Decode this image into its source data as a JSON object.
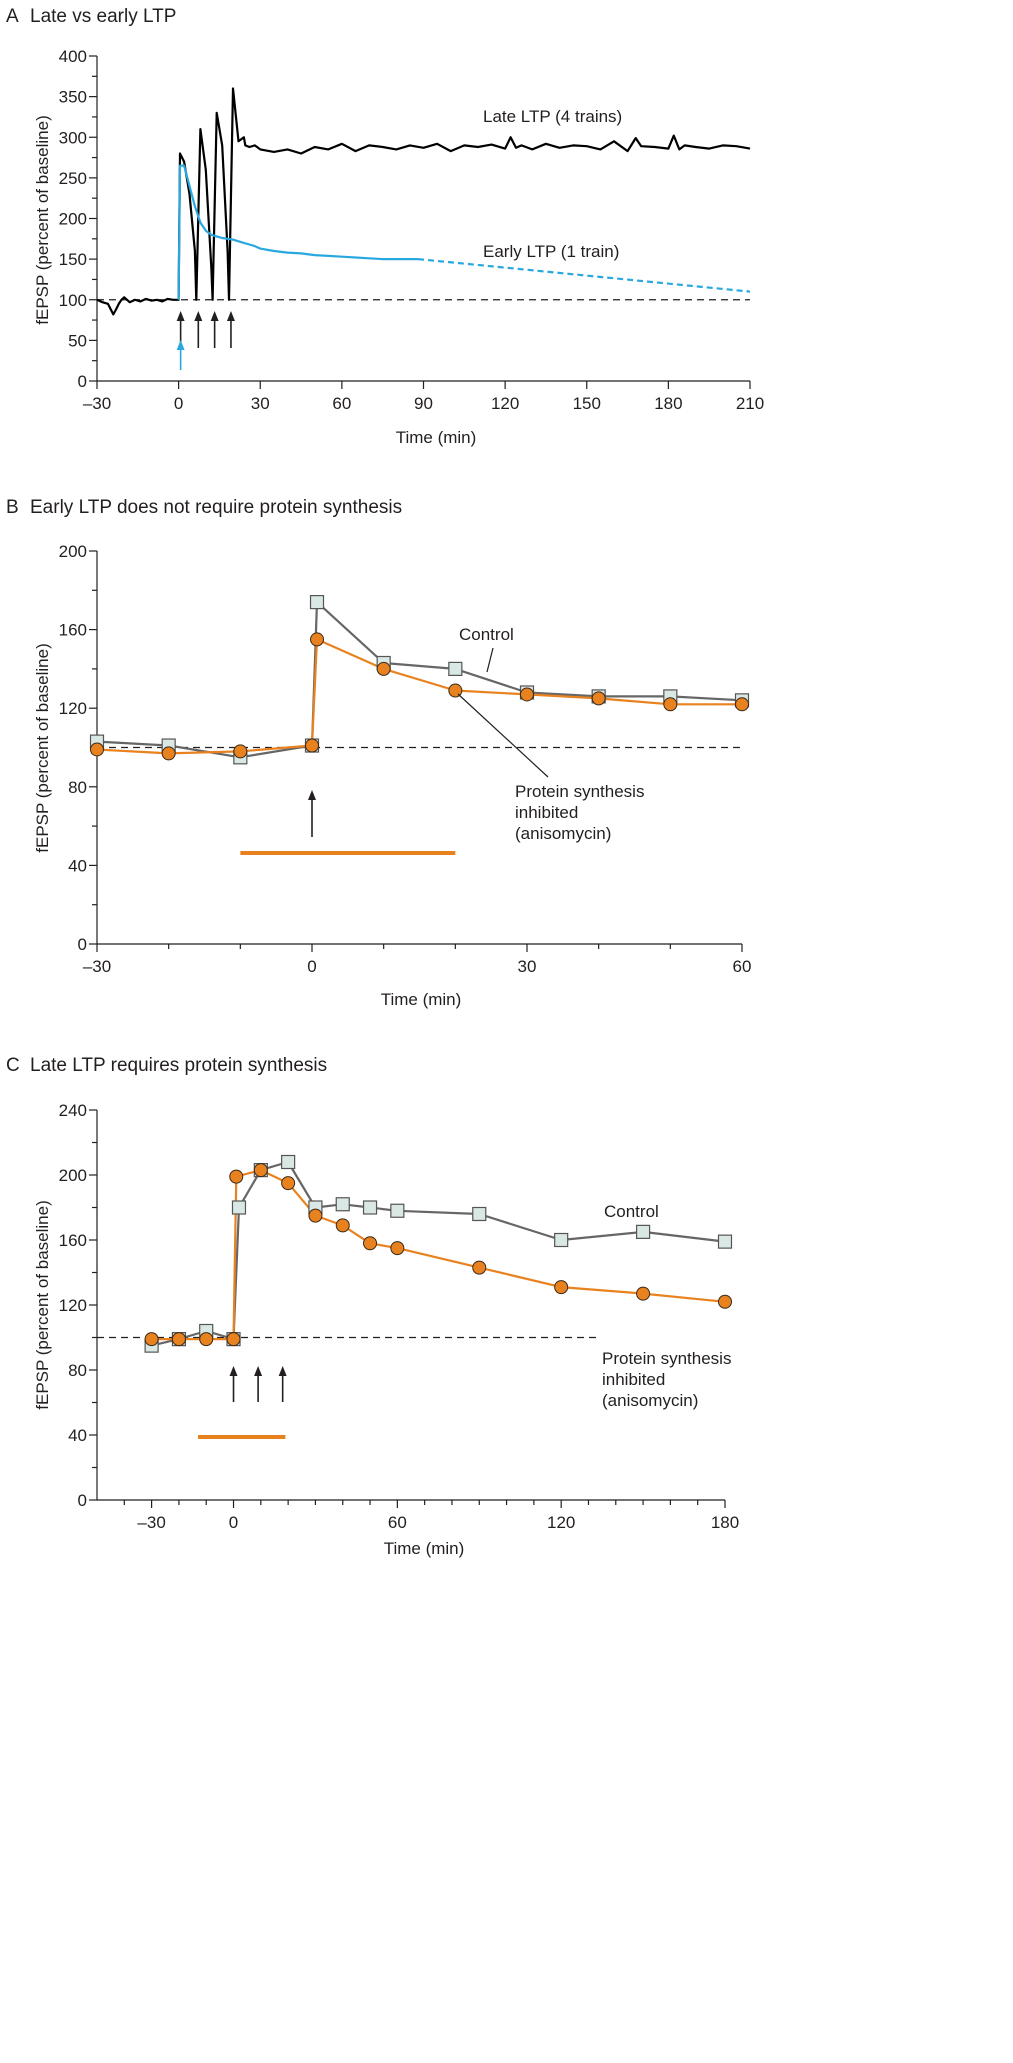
{
  "chart_data": [
    {
      "panel": "A",
      "title": "Late vs early LTP",
      "type": "line",
      "xlabel": "Time (min)",
      "ylabel": "fEPSP (percent of baseline)",
      "xlim": [
        -30,
        210
      ],
      "ylim": [
        0,
        400
      ],
      "xticks": [
        -30,
        0,
        30,
        60,
        90,
        120,
        150,
        180,
        210
      ],
      "xtick_labels": [
        "–30",
        "0",
        "30",
        "60",
        "90",
        "120",
        "150",
        "180",
        "210"
      ],
      "yticks": [
        0,
        50,
        100,
        150,
        200,
        250,
        300,
        350,
        400
      ],
      "baseline": 100,
      "series": [
        {
          "name": "Late LTP (4 trains)",
          "color": "#000000",
          "x": [
            -30,
            -28,
            -26,
            -24,
            -23,
            -22,
            -21,
            -20,
            -18,
            -16,
            -14,
            -12,
            -10,
            -8,
            -6,
            -4,
            -2,
            0,
            0.5,
            2,
            4,
            6,
            6.5,
            8,
            10,
            12,
            12.5,
            14,
            16,
            18,
            18.5,
            20,
            22,
            24,
            24.5,
            26,
            28,
            30,
            35,
            40,
            45,
            50,
            55,
            60,
            65,
            70,
            75,
            80,
            85,
            90,
            95,
            100,
            105,
            110,
            115,
            120,
            122,
            124,
            126,
            130,
            135,
            140,
            145,
            150,
            155,
            160,
            165,
            168,
            170,
            175,
            180,
            182,
            184,
            186,
            190,
            195,
            200,
            205,
            210
          ],
          "y": [
            100,
            97,
            95,
            82,
            88,
            95,
            100,
            103,
            97,
            100,
            98,
            101,
            99,
            100,
            98,
            101,
            100,
            100,
            280,
            270,
            230,
            160,
            100,
            310,
            260,
            140,
            100,
            330,
            290,
            160,
            100,
            360,
            295,
            300,
            290,
            288,
            290,
            285,
            282,
            285,
            280,
            288,
            285,
            292,
            283,
            290,
            288,
            285,
            290,
            287,
            292,
            283,
            290,
            288,
            291,
            286,
            300,
            287,
            290,
            285,
            292,
            287,
            290,
            289,
            285,
            295,
            283,
            299,
            289,
            288,
            286,
            302,
            285,
            290,
            288,
            286,
            290,
            289,
            286
          ]
        },
        {
          "name": "Early LTP (1 train)",
          "color": "#29a8e0",
          "x": [
            0,
            0.5,
            2,
            4,
            6,
            8,
            10,
            12,
            14,
            16,
            18,
            20,
            22,
            24,
            26,
            28,
            30,
            35,
            40,
            45,
            50,
            55,
            60,
            65,
            70,
            75,
            80,
            85,
            88
          ],
          "y": [
            100,
            265,
            265,
            240,
            215,
            195,
            185,
            180,
            178,
            176,
            175,
            174,
            172,
            170,
            168,
            166,
            163,
            160,
            158,
            157,
            155,
            154,
            153,
            152,
            151,
            150,
            150,
            150,
            150
          ]
        },
        {
          "name": "Early LTP (1 train) extrapolated",
          "color": "#29a8e0",
          "dashed": true,
          "x": [
            88,
            210
          ],
          "y": [
            150,
            110
          ]
        }
      ],
      "stimulus_arrows": {
        "black": [
          0,
          6.5,
          12.5,
          18.5
        ],
        "blue": [
          0
        ]
      }
    },
    {
      "panel": "B",
      "title": "Early LTP does not require protein synthesis",
      "type": "line",
      "xlabel": "Time (min)",
      "ylabel": "fEPSP (percent of baseline)",
      "xlim": [
        -30,
        60
      ],
      "ylim": [
        0,
        200
      ],
      "xticks": [
        -30,
        0,
        30,
        60
      ],
      "xtick_labels": [
        "–30",
        "0",
        "30",
        "60"
      ],
      "yticks": [
        0,
        40,
        80,
        120,
        160,
        200
      ],
      "baseline": 100,
      "series": [
        {
          "name": "Control",
          "color": "#666666",
          "marker": "square",
          "x": [
            -30,
            -20,
            -10,
            0,
            0.7,
            10,
            20,
            30,
            40,
            50,
            60
          ],
          "y": [
            103,
            101,
            95,
            101,
            174,
            143,
            140,
            128,
            126,
            126,
            124
          ]
        },
        {
          "name": "Protein synthesis inhibited (anisomycin)",
          "color": "#e8821e",
          "marker": "circle",
          "x": [
            -30,
            -20,
            -10,
            0,
            0.7,
            10,
            20,
            30,
            40,
            50,
            60
          ],
          "y": [
            99,
            97,
            98,
            101,
            155,
            140,
            129,
            127,
            125,
            122,
            122
          ]
        }
      ],
      "drug_bar": [
        -10,
        20
      ],
      "stimulus_arrows": [
        0
      ]
    },
    {
      "panel": "C",
      "title": "Late LTP requires protein synthesis",
      "type": "line",
      "xlabel": "Time (min)",
      "ylabel": "fEPSP (percent of baseline)",
      "xlim": [
        -50,
        180
      ],
      "ylim": [
        0,
        240
      ],
      "xticks": [
        -30,
        0,
        60,
        120,
        180
      ],
      "xtick_labels": [
        "–30",
        "0",
        "60",
        "120",
        "180"
      ],
      "yticks": [
        0,
        40,
        80,
        120,
        160,
        200,
        240
      ],
      "baseline": 100,
      "series": [
        {
          "name": "Control",
          "color": "#666666",
          "marker": "square",
          "x": [
            -30,
            -20,
            -10,
            0,
            2,
            10,
            20,
            30,
            40,
            50,
            60,
            90,
            120,
            150,
            180
          ],
          "y": [
            95,
            99,
            104,
            99,
            180,
            203,
            208,
            180,
            182,
            180,
            178,
            176,
            160,
            165,
            159
          ]
        },
        {
          "name": "Protein synthesis inhibited (anisomycin)",
          "color": "#e8821e",
          "marker": "circle",
          "x": [
            -30,
            -20,
            -10,
            0,
            1,
            10,
            20,
            30,
            40,
            50,
            60,
            90,
            120,
            150,
            180
          ],
          "y": [
            99,
            99,
            99,
            99,
            199,
            203,
            195,
            175,
            169,
            158,
            155,
            143,
            131,
            127,
            122
          ]
        }
      ],
      "drug_bar": [
        -13,
        19
      ],
      "stimulus_arrows": [
        0,
        9,
        18
      ]
    }
  ],
  "panels": [
    {
      "letter": "A",
      "title": "Late vs early LTP",
      "xlabel": "Time (min)",
      "ylabel": "fEPSP (percent of baseline)",
      "annotations": {
        "late": "Late LTP (4 trains)",
        "early": "Early LTP (1 train)"
      }
    },
    {
      "letter": "B",
      "title": "Early LTP does not require protein synthesis",
      "xlabel": "Time (min)",
      "ylabel": "fEPSP (percent of baseline)",
      "annotations": {
        "control": "Control",
        "inhibited_1": "Protein synthesis",
        "inhibited_2": "inhibited",
        "inhibited_3": "(anisomycin)"
      }
    },
    {
      "letter": "C",
      "title": "Late LTP requires protein synthesis",
      "xlabel": "Time (min)",
      "ylabel": "fEPSP (percent of baseline)",
      "annotations": {
        "control": "Control",
        "inhibited_1": "Protein synthesis",
        "inhibited_2": "inhibited",
        "inhibited_3": "(anisomycin)"
      }
    }
  ]
}
